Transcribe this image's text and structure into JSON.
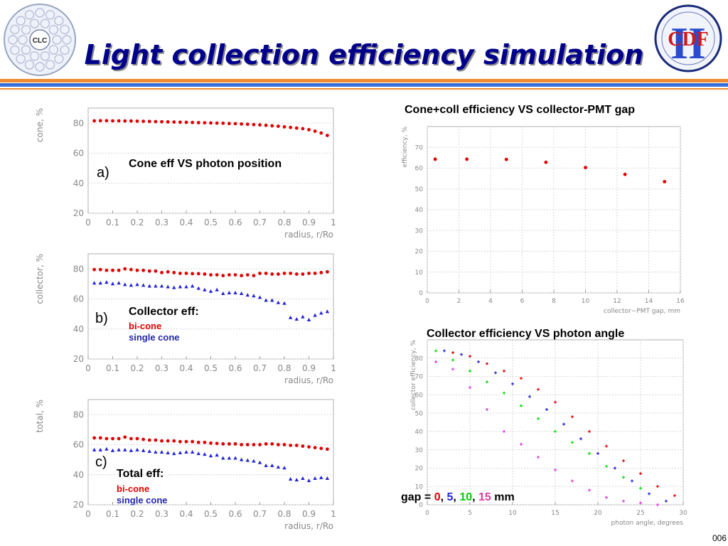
{
  "slide": {
    "title": "Light collection efficiency simulation",
    "footer": "006",
    "logos": {
      "left": "CLC",
      "right": "CDF",
      "right_numeral": "II"
    },
    "colors": {
      "title": "#00008b",
      "stripe_orange": "#f08a2c",
      "stripe_blue": "#3b6fd8",
      "red": "#e00000",
      "blue": "#2323d8",
      "green": "#00e000",
      "magenta": "#e03ce0"
    }
  },
  "panel_a": {
    "tag": "a)",
    "label": "Cone eff VS photon position"
  },
  "panel_b": {
    "tag": "b)",
    "label": "Collector eff:",
    "legend_red": "bi-cone",
    "legend_blue": "single cone"
  },
  "panel_c": {
    "tag": "c)",
    "label": "Total eff:",
    "legend_red": "bi-cone",
    "legend_blue": "single cone"
  },
  "panel_gap": {
    "label": "Cone+coll efficiency VS collector-PMT gap"
  },
  "panel_angle": {
    "label": "Collector efficiency VS photon angle",
    "legend_prefix": "gap =",
    "legend_values": [
      "0",
      "5",
      "10",
      "15"
    ],
    "legend_unit": "mm"
  },
  "chart_data": [
    {
      "id": "cone",
      "type": "scatter",
      "xlabel": "radius, r/Ro",
      "ylabel": "cone, %",
      "xlim": [
        0,
        1
      ],
      "ylim": [
        20,
        90
      ],
      "xticks": [
        "0",
        "0.1",
        "0.2",
        "0.3",
        "0.4",
        "0.5",
        "0.6",
        "0.7",
        "0.8",
        "0.9",
        "1"
      ],
      "yticks": [
        "20",
        "40",
        "60",
        "80"
      ],
      "series": [
        {
          "color": "#e00000",
          "marker": "circle",
          "x": [
            0.025,
            0.05,
            0.075,
            0.1,
            0.125,
            0.15,
            0.175,
            0.2,
            0.225,
            0.25,
            0.275,
            0.3,
            0.325,
            0.35,
            0.375,
            0.4,
            0.425,
            0.45,
            0.475,
            0.5,
            0.525,
            0.55,
            0.575,
            0.6,
            0.625,
            0.65,
            0.675,
            0.7,
            0.725,
            0.75,
            0.775,
            0.8,
            0.825,
            0.85,
            0.875,
            0.9,
            0.925,
            0.95,
            0.975
          ],
          "y": [
            81.5,
            81.6,
            81.6,
            81.5,
            81.5,
            81.4,
            81.4,
            81.3,
            81.2,
            81.1,
            81.0,
            80.9,
            80.8,
            80.7,
            80.6,
            80.5,
            80.4,
            80.3,
            80.2,
            80.1,
            80.0,
            79.9,
            79.7,
            79.6,
            79.4,
            79.2,
            79.0,
            78.8,
            78.5,
            78.2,
            77.9,
            77.5,
            77.1,
            76.7,
            76.3,
            75.6,
            74.6,
            73.4,
            71.8
          ]
        }
      ]
    },
    {
      "id": "collector",
      "type": "scatter",
      "xlabel": "radius, r/Ro",
      "ylabel": "collector, %",
      "xlim": [
        0,
        1
      ],
      "ylim": [
        20,
        90
      ],
      "xticks": [
        "0",
        "0.1",
        "0.2",
        "0.3",
        "0.4",
        "0.5",
        "0.6",
        "0.7",
        "0.8",
        "0.9",
        "1"
      ],
      "yticks": [
        "20",
        "40",
        "60",
        "80"
      ],
      "series": [
        {
          "color": "#e00000",
          "marker": "circle",
          "x": [
            0.025,
            0.05,
            0.075,
            0.1,
            0.125,
            0.15,
            0.175,
            0.2,
            0.225,
            0.25,
            0.275,
            0.3,
            0.325,
            0.35,
            0.375,
            0.4,
            0.425,
            0.45,
            0.475,
            0.5,
            0.525,
            0.55,
            0.575,
            0.6,
            0.625,
            0.65,
            0.675,
            0.7,
            0.725,
            0.75,
            0.775,
            0.8,
            0.825,
            0.85,
            0.875,
            0.9,
            0.925,
            0.95,
            0.975
          ],
          "y": [
            79.5,
            79.5,
            79.0,
            79.0,
            79.0,
            80.0,
            79.5,
            79.0,
            79.0,
            78.5,
            78.5,
            77.5,
            78.0,
            77.5,
            77.0,
            77.0,
            76.8,
            76.8,
            76.5,
            76.0,
            76.0,
            75.5,
            76.0,
            76.0,
            75.5,
            76.0,
            75.5,
            77.0,
            77.0,
            76.5,
            76.5,
            77.0,
            77.0,
            76.5,
            76.5,
            77.0,
            77.0,
            77.5,
            78.0
          ]
        },
        {
          "color": "#2323d8",
          "marker": "triangle",
          "x": [
            0.025,
            0.05,
            0.075,
            0.1,
            0.125,
            0.15,
            0.175,
            0.2,
            0.225,
            0.25,
            0.275,
            0.3,
            0.325,
            0.35,
            0.375,
            0.4,
            0.425,
            0.45,
            0.475,
            0.5,
            0.525,
            0.55,
            0.575,
            0.6,
            0.625,
            0.65,
            0.675,
            0.7,
            0.725,
            0.75,
            0.775,
            0.8,
            0.825,
            0.85,
            0.875,
            0.9,
            0.925,
            0.95,
            0.975
          ],
          "y": [
            70.5,
            70.5,
            71.0,
            70.0,
            70.5,
            69.5,
            69.0,
            69.5,
            69.0,
            68.5,
            68.5,
            68.5,
            68.0,
            67.5,
            68.0,
            68.0,
            68.5,
            67.0,
            66.0,
            65.0,
            66.0,
            63.5,
            64.0,
            64.0,
            63.5,
            62.5,
            62.0,
            61.0,
            59.0,
            59.0,
            57.5,
            57.0,
            47.5,
            46.5,
            48.0,
            46.0,
            49.0,
            50.5,
            51.5
          ]
        }
      ]
    },
    {
      "id": "total",
      "type": "scatter",
      "xlabel": "radius, r/Ro",
      "ylabel": "total, %",
      "xlim": [
        0,
        1
      ],
      "ylim": [
        20,
        90
      ],
      "xticks": [
        "0",
        "0.1",
        "0.2",
        "0.3",
        "0.4",
        "0.5",
        "0.6",
        "0.7",
        "0.8",
        "0.9",
        "1"
      ],
      "yticks": [
        "20",
        "40",
        "60",
        "80"
      ],
      "series": [
        {
          "color": "#e00000",
          "marker": "circle",
          "x": [
            0.025,
            0.05,
            0.075,
            0.1,
            0.125,
            0.15,
            0.175,
            0.2,
            0.225,
            0.25,
            0.275,
            0.3,
            0.325,
            0.35,
            0.375,
            0.4,
            0.425,
            0.45,
            0.475,
            0.5,
            0.525,
            0.55,
            0.575,
            0.6,
            0.625,
            0.65,
            0.675,
            0.7,
            0.725,
            0.75,
            0.775,
            0.8,
            0.825,
            0.85,
            0.875,
            0.9,
            0.925,
            0.95,
            0.975
          ],
          "y": [
            64.5,
            64.5,
            64.0,
            64.0,
            64.0,
            65.0,
            64.0,
            64.0,
            63.5,
            63.0,
            63.0,
            62.5,
            62.5,
            62.5,
            62.0,
            62.0,
            62.0,
            61.5,
            61.5,
            61.0,
            60.8,
            60.5,
            60.5,
            60.5,
            60.0,
            60.0,
            60.0,
            60.0,
            60.5,
            60.5,
            60.0,
            60.0,
            59.5,
            59.5,
            59.0,
            58.5,
            58.0,
            57.5,
            57.0
          ]
        },
        {
          "color": "#2323d8",
          "marker": "triangle",
          "x": [
            0.025,
            0.05,
            0.075,
            0.1,
            0.125,
            0.15,
            0.175,
            0.2,
            0.225,
            0.25,
            0.275,
            0.3,
            0.325,
            0.35,
            0.375,
            0.4,
            0.425,
            0.45,
            0.475,
            0.5,
            0.525,
            0.55,
            0.575,
            0.6,
            0.625,
            0.65,
            0.675,
            0.7,
            0.725,
            0.75,
            0.775,
            0.8,
            0.825,
            0.85,
            0.875,
            0.9,
            0.925,
            0.95,
            0.975
          ],
          "y": [
            56.5,
            56.5,
            57.0,
            56.0,
            56.5,
            56.5,
            56.0,
            56.5,
            56.0,
            55.5,
            55.0,
            55.0,
            54.5,
            54.0,
            54.5,
            55.0,
            55.0,
            54.0,
            53.5,
            52.5,
            53.0,
            51.0,
            51.0,
            51.0,
            50.0,
            49.5,
            49.0,
            48.0,
            46.0,
            46.0,
            45.0,
            44.5,
            37.0,
            36.5,
            37.5,
            36.0,
            37.5,
            38.0,
            37.5
          ]
        }
      ]
    },
    {
      "id": "gap",
      "type": "scatter",
      "title": "Cone+coll efficiency VS collector-PMT gap",
      "xlabel": "collector−PMT gap, mm",
      "ylabel": "efficiency, %",
      "xlim": [
        0,
        16
      ],
      "ylim": [
        0,
        80
      ],
      "xticks": [
        "0",
        "2",
        "4",
        "6",
        "8",
        "10",
        "12",
        "14",
        "16"
      ],
      "yticks": [
        "0",
        "10",
        "20",
        "30",
        "40",
        "50",
        "60",
        "70"
      ],
      "series": [
        {
          "color": "#e00000",
          "marker": "circle",
          "x": [
            0.5,
            2.5,
            5,
            7.5,
            10,
            12.5,
            15
          ],
          "y": [
            64.3,
            64.3,
            64.2,
            62.8,
            60.3,
            57.0,
            53.5
          ]
        }
      ]
    },
    {
      "id": "angle",
      "type": "scatter",
      "title": "Collector efficiency VS photon angle",
      "xlabel": "photon angle, degrees",
      "ylabel": "collector efficiency, %",
      "xlim": [
        0,
        30
      ],
      "ylim": [
        0,
        90
      ],
      "xticks": [
        "0",
        "5",
        "10",
        "15",
        "20",
        "25",
        "30"
      ],
      "yticks": [
        "0",
        "10",
        "20",
        "30",
        "40",
        "50",
        "60",
        "70",
        "80"
      ],
      "series": [
        {
          "name": "0",
          "color": "#00e000",
          "marker": "plus",
          "x": [
            1,
            3,
            5,
            7,
            9,
            11,
            13,
            15,
            17,
            19,
            21,
            23,
            25
          ],
          "y": [
            84,
            79,
            73,
            67,
            61,
            54,
            47,
            40,
            34,
            28,
            21,
            15,
            9
          ]
        },
        {
          "name": "5",
          "color": "#2323d8",
          "marker": "plus",
          "x": [
            2,
            4,
            6,
            8,
            10,
            12,
            14,
            16,
            18,
            20,
            22,
            24,
            26,
            28
          ],
          "y": [
            84,
            82,
            78,
            72,
            66,
            59,
            52,
            44,
            36,
            28,
            20,
            13,
            6,
            2
          ]
        },
        {
          "name": "10",
          "color": "#e00000",
          "marker": "plus",
          "x": [
            3,
            5,
            7,
            9,
            11,
            13,
            15,
            17,
            19,
            21,
            23,
            25,
            27,
            29
          ],
          "y": [
            83,
            81,
            77,
            73,
            69,
            63,
            56,
            48,
            40,
            32,
            24,
            17,
            10,
            5
          ]
        },
        {
          "name": "15",
          "color": "#e03ce0",
          "marker": "plus",
          "x": [
            1,
            3,
            5,
            7,
            9,
            11,
            13,
            15,
            17,
            19,
            21,
            23,
            25,
            27
          ],
          "y": [
            78,
            74,
            64,
            52,
            40,
            33,
            26,
            19,
            13,
            8,
            4,
            2,
            1,
            0
          ]
        }
      ]
    }
  ]
}
